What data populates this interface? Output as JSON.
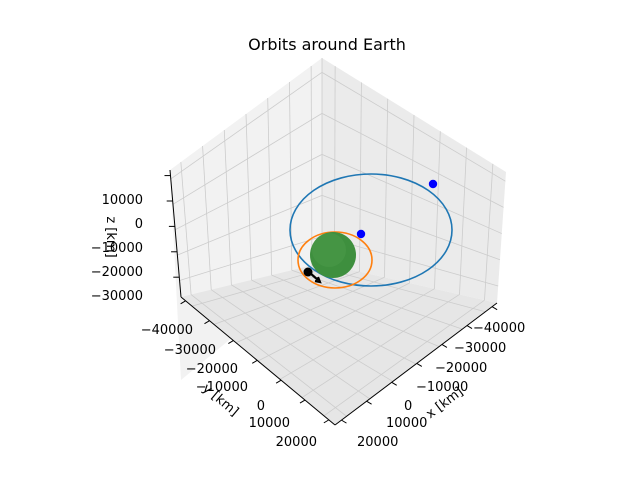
{
  "chart_data": {
    "type": "scatter3d",
    "title": "Orbits around Earth",
    "xlabel": "x [km]",
    "ylabel": "y [km]",
    "zlabel": "z [km]",
    "xticks": [
      "−40000",
      "−30000",
      "−20000",
      "−10000",
      "0",
      "10000",
      "20000"
    ],
    "yticks": [
      "−40000",
      "−30000",
      "−20000",
      "−10000",
      "0",
      "10000",
      "20000"
    ],
    "zticks": [
      "10000",
      "0",
      "−10000",
      "−20000",
      "−30000"
    ],
    "xlim": [
      -45000,
      20000
    ],
    "ylim": [
      -45000,
      20000
    ],
    "zlim": [
      -32000,
      16000
    ],
    "grid": true,
    "colors": {
      "orbit_large": "#1f77b4",
      "orbit_small": "#ff7f0e",
      "earth": "#2ca02c",
      "satellite": "#0000ff",
      "marker": "#000000"
    },
    "series": [
      {
        "type": "orbit",
        "color_key": "orbit_large"
      },
      {
        "type": "orbit",
        "color_key": "orbit_small"
      },
      {
        "type": "sphere",
        "color_key": "earth"
      },
      {
        "type": "satellites",
        "color_key": "satellite"
      }
    ]
  }
}
